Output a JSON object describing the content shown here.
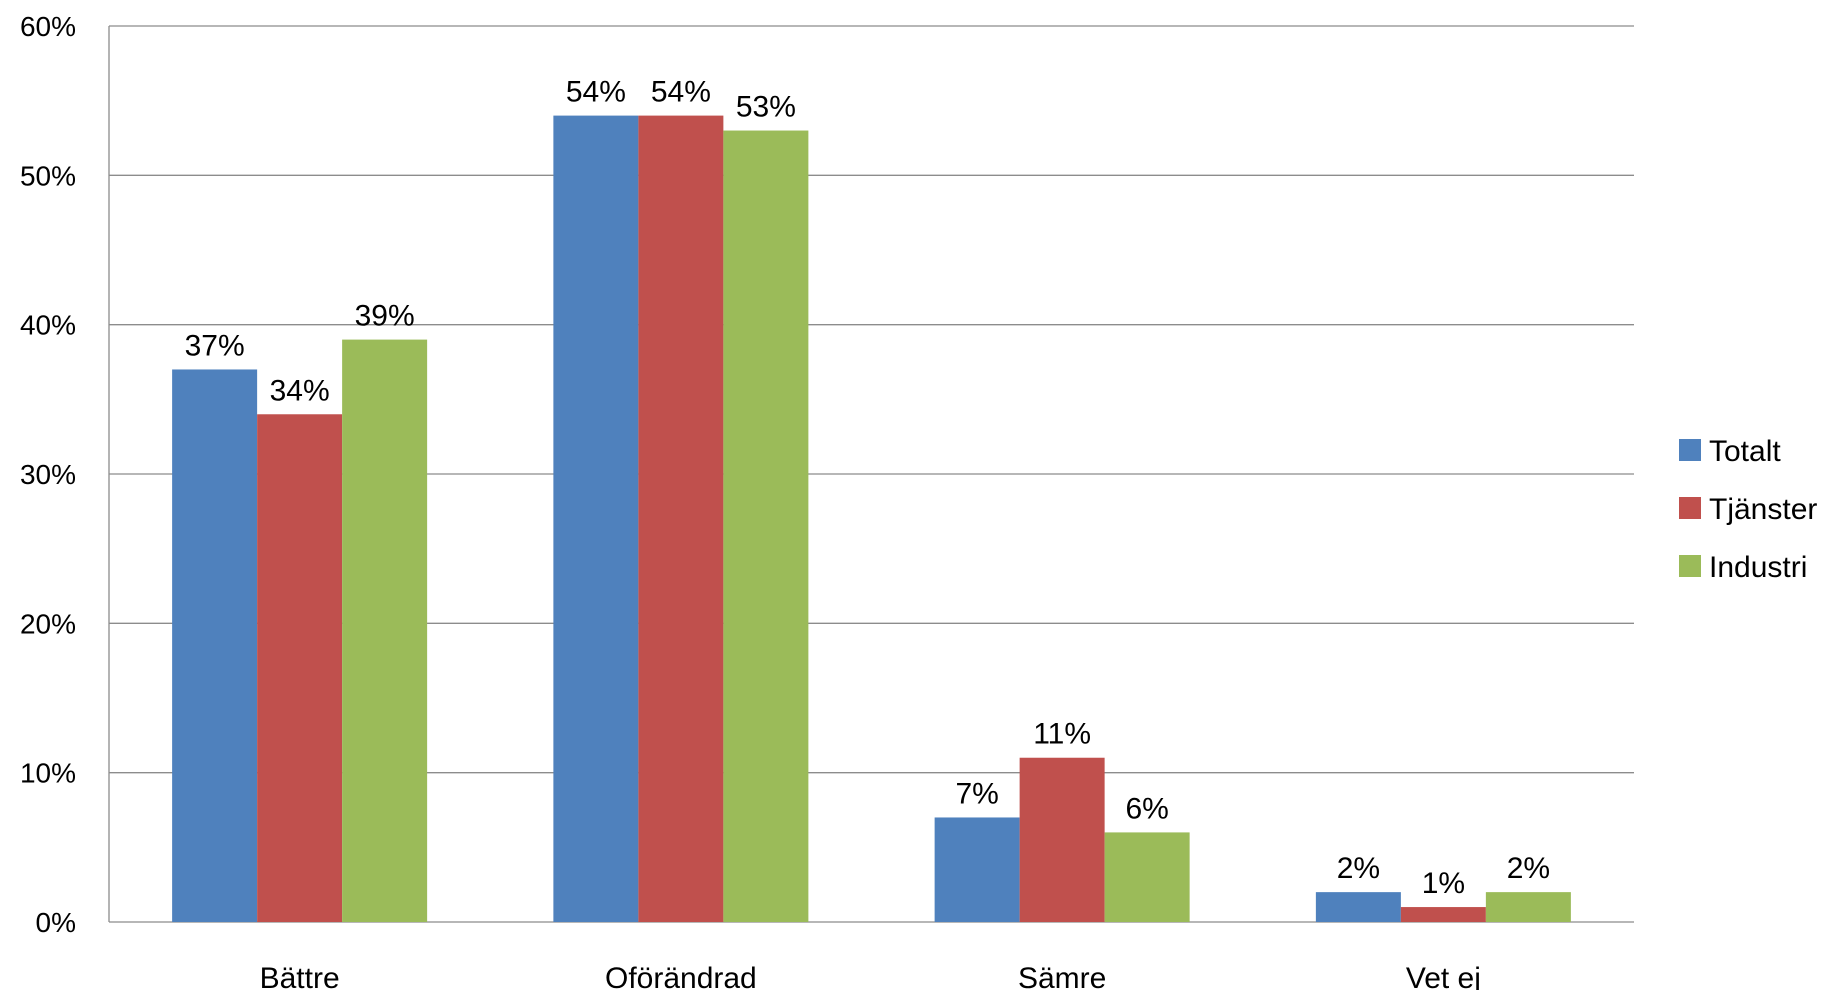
{
  "chart_data": {
    "type": "bar",
    "title": "",
    "xlabel": "",
    "ylabel": "",
    "categories": [
      "Bättre",
      "Oförändrad",
      "Sämre",
      "Vet ej"
    ],
    "series": [
      {
        "name": "Totalt",
        "color": "#4F81BD",
        "values": [
          37,
          54,
          7,
          2
        ],
        "labels": [
          "37%",
          "54%",
          "7%",
          "2%"
        ]
      },
      {
        "name": "Tjänster",
        "color": "#C0504D",
        "values": [
          34,
          54,
          11,
          1
        ],
        "labels": [
          "34%",
          "54%",
          "11%",
          "1%"
        ]
      },
      {
        "name": "Industri",
        "color": "#9BBB59",
        "values": [
          39,
          53,
          6,
          2
        ],
        "labels": [
          "39%",
          "53%",
          "6%",
          "2%"
        ]
      }
    ],
    "ylim": [
      0,
      60
    ],
    "yticks": [
      0,
      10,
      20,
      30,
      40,
      50,
      60
    ],
    "ytick_labels": [
      "0%",
      "10%",
      "20%",
      "30%",
      "40%",
      "50%",
      "60%"
    ],
    "grid": true,
    "legend_position": "right"
  }
}
